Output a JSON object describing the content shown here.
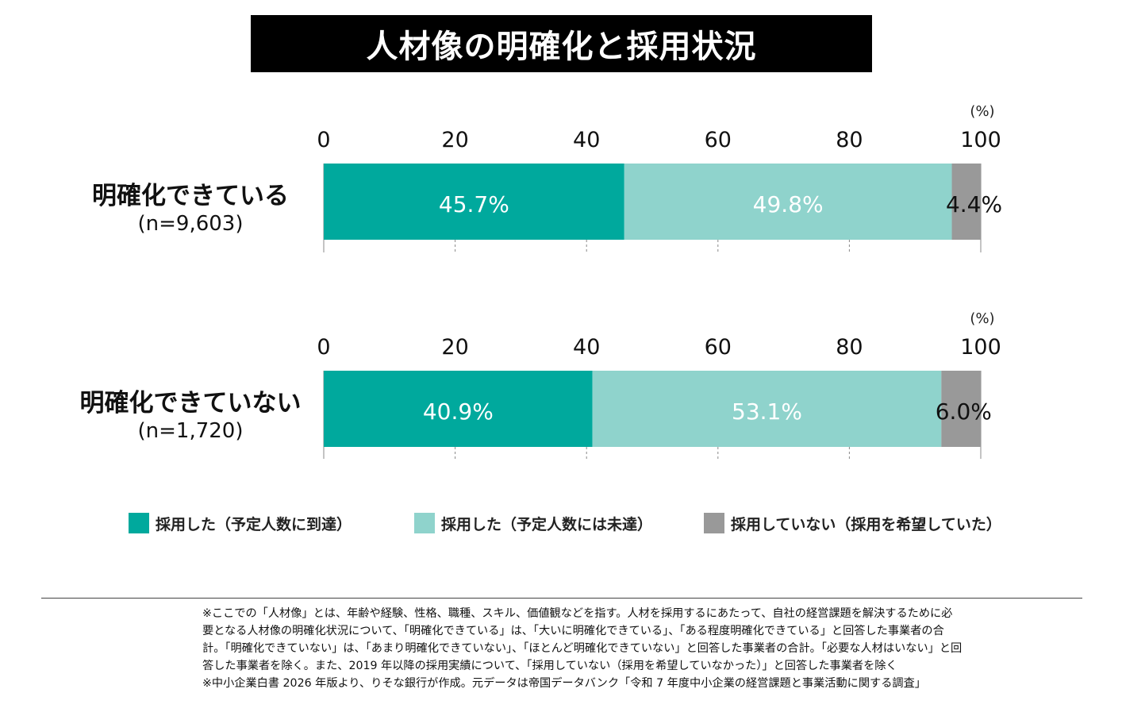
{
  "title": "人材像の明確化と採用状況",
  "colors": {
    "reached": "#00a99d",
    "not_reached": "#8fd3cc",
    "not_hired": "#999999",
    "grid": "#888888"
  },
  "chart_data": {
    "type": "bar",
    "orientation": "horizontal",
    "stacked": true,
    "unit_label": "(%)",
    "xlim": [
      0,
      100
    ],
    "xticks": [
      "0",
      "20",
      "40",
      "60",
      "80",
      "100"
    ],
    "categories": [
      {
        "label": "明確化できている",
        "n": "(n=9,603)"
      },
      {
        "label": "明確化できていない",
        "n": "(n=1,720)"
      }
    ],
    "series": [
      {
        "name": "採用した（予定人数に到達）",
        "values": [
          45.7,
          40.9
        ],
        "labels": [
          "45.7%",
          "40.9%"
        ]
      },
      {
        "name": "採用した（予定人数には未達）",
        "values": [
          49.8,
          53.1
        ],
        "labels": [
          "49.8%",
          "53.1%"
        ]
      },
      {
        "name": "採用していない（採用を希望していた）",
        "values": [
          4.4,
          6.0
        ],
        "labels": [
          "4.4%",
          "6.0%"
        ]
      }
    ],
    "legend_position": "bottom",
    "grid": true
  },
  "notes": [
    "※ここでの「人材像」とは、年齢や経験、性格、職種、スキル、価値観などを指す。人材を採用するにあたって、自社の経営課題を解決するために必",
    "要となる人材像の明確化状況について、「明確化できている」は、「大いに明確化できている」、「ある程度明確化できている」と回答した事業者の合",
    "計。「明確化できていない」は、「あまり明確化できていない」、「ほとんど明確化できていない」と回答した事業者の合計。「必要な人材はいない」と回",
    "答した事業者を除く。また、2019 年以降の採用実績について、「採用していない（採用を希望していなかった）」と回答した事業者を除く",
    "※中小企業白書 2026 年版より、りそな銀行が作成。元データは帝国データバンク「令和 7 年度中小企業の経営課題と事業活動に関する調査」"
  ]
}
